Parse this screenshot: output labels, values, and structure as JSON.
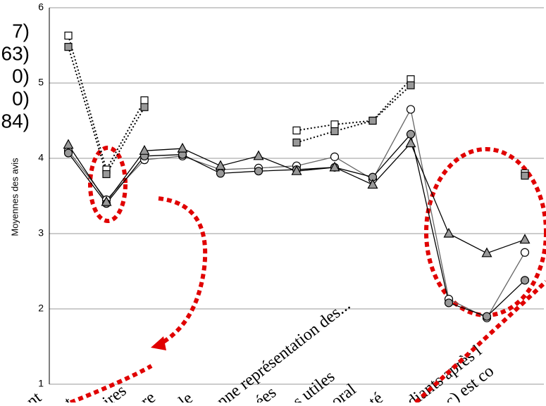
{
  "chart_data": {
    "type": "line",
    "y_label": "Moyennes des avis",
    "categories": [
      "nt",
      "t",
      "ires",
      "re",
      "le",
      "nne représentation des...",
      "ées",
      "s utiles",
      "oral",
      "té",
      "diants après l",
      "c) est co",
      null
    ],
    "series": [
      {
        "name": "7)",
        "color": "#ffffff",
        "line": "dotted",
        "marker": "square",
        "values": [
          5.63,
          3.85,
          4.77,
          null,
          null,
          null,
          4.37,
          4.45,
          4.5,
          5.05,
          null,
          null,
          3.8
        ]
      },
      {
        "name": "63)",
        "color": "#999999",
        "line": "dotted",
        "marker": "square",
        "values": [
          5.48,
          3.79,
          4.68,
          null,
          null,
          null,
          4.21,
          4.36,
          4.5,
          4.97,
          null,
          null,
          3.77
        ]
      },
      {
        "name": "0)",
        "color": "#ffffff",
        "line": "solid",
        "marker": "circle",
        "values": [
          4.1,
          3.45,
          3.98,
          4.03,
          3.85,
          3.87,
          3.9,
          4.02,
          3.72,
          4.65,
          2.13,
          1.88,
          2.75
        ]
      },
      {
        "name": "0)",
        "color": "#999999",
        "line": "solid",
        "marker": "circle",
        "values": [
          4.07,
          3.4,
          4.03,
          4.05,
          3.8,
          3.83,
          3.85,
          3.88,
          3.75,
          4.32,
          2.08,
          1.9,
          2.38
        ]
      },
      {
        "name": "84)",
        "color": "#999999",
        "line": "solid",
        "marker": "triangle",
        "values": [
          4.18,
          3.42,
          4.1,
          4.13,
          3.9,
          4.03,
          3.83,
          3.88,
          3.65,
          4.2,
          3.0,
          2.74,
          2.92
        ]
      }
    ],
    "ylim": [
      1,
      6
    ],
    "yticks": [
      1,
      2,
      3,
      4,
      5,
      6
    ],
    "grid": true
  }
}
